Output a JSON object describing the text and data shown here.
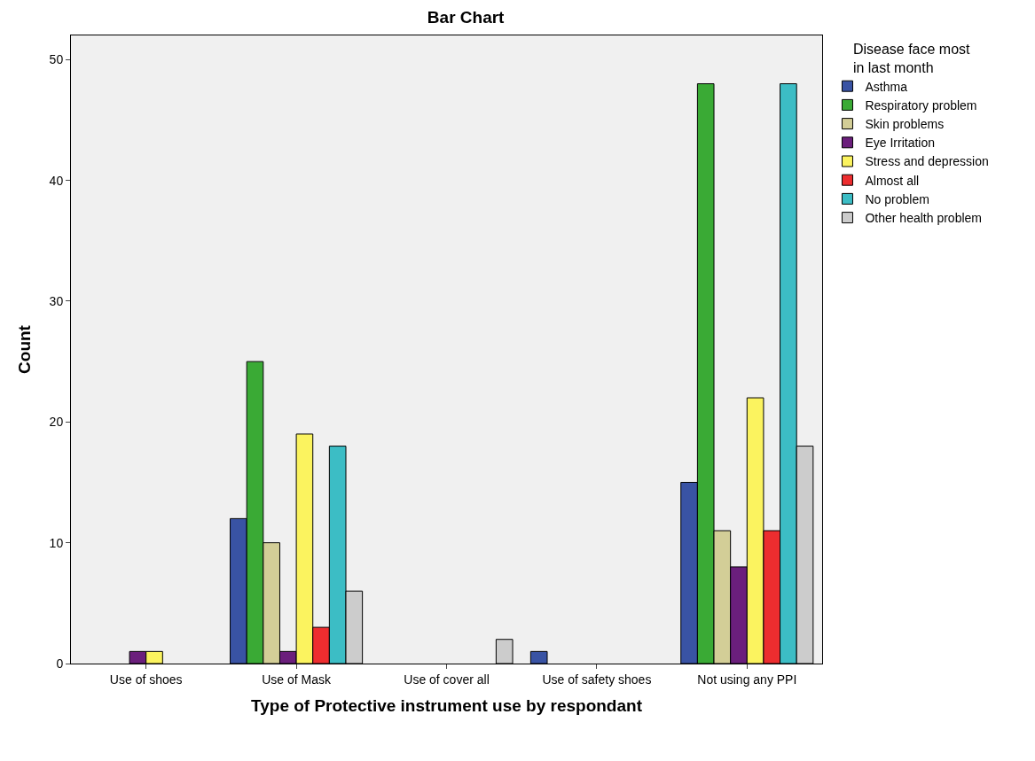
{
  "chart_data": {
    "type": "bar",
    "title": "Bar Chart",
    "xlabel": "Type of Protective instrument use by respondant",
    "ylabel": "Count",
    "legend_title": "Disease face most in last month",
    "categories": [
      "Use of shoes",
      "Use of Mask",
      "Use of cover all",
      "Use of safety shoes",
      "Not using any PPI"
    ],
    "series": [
      {
        "name": "Asthma",
        "color": "#3953a4",
        "values": [
          null,
          12,
          null,
          1,
          15
        ]
      },
      {
        "name": "Respiratory problem",
        "color": "#3aaa35",
        "values": [
          null,
          25,
          null,
          null,
          48
        ]
      },
      {
        "name": "Skin problems",
        "color": "#d3ce97",
        "values": [
          null,
          10,
          null,
          null,
          11
        ]
      },
      {
        "name": "Eye Irritation",
        "color": "#6b1f7c",
        "values": [
          1,
          1,
          null,
          null,
          8
        ]
      },
      {
        "name": "Stress and depression",
        "color": "#fbf35f",
        "values": [
          1,
          19,
          null,
          null,
          22
        ]
      },
      {
        "name": "Almost all",
        "color": "#ed2d2f",
        "values": [
          null,
          3,
          null,
          null,
          11
        ]
      },
      {
        "name": "No problem",
        "color": "#3cbdc5",
        "values": [
          null,
          18,
          null,
          null,
          48
        ]
      },
      {
        "name": "Other health problem",
        "color": "#cccccc",
        "values": [
          null,
          6,
          2,
          null,
          18
        ]
      }
    ],
    "ylim": [
      0,
      52
    ],
    "yticks": [
      0,
      10,
      20,
      30,
      40,
      50
    ],
    "grid": false,
    "legend": "right"
  }
}
